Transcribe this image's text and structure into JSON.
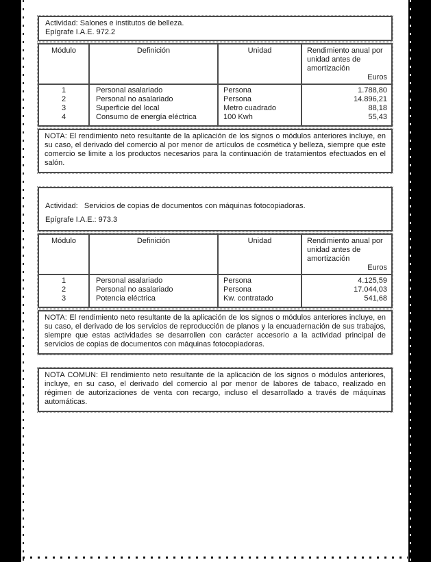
{
  "page": {
    "boxes": [
      {
        "actividad_line": "Actividad: Salones e institutos de belleza.",
        "epigrafe_line": "Epígrafe I.A.E. 972.2",
        "headers": {
          "modulo": "Módulo",
          "definicion": "Definición",
          "unidad": "Unidad",
          "rendimiento": "Rendimiento anual por unidad antes de amortización",
          "euros_label": "Euros"
        },
        "rows": [
          {
            "modulo": "1",
            "definicion": "Personal asalariado",
            "unidad": "Persona",
            "importe": "1.788,80"
          },
          {
            "modulo": "2",
            "definicion": "Personal no asalariado",
            "unidad": "Persona",
            "importe": "14.896,21"
          },
          {
            "modulo": "3",
            "definicion": "Superficie del local",
            "unidad": "Metro cuadrado",
            "importe": "88,18"
          },
          {
            "modulo": "4",
            "definicion": "Consumo de energía eléctrica",
            "unidad": "100 Kwh",
            "importe": "55,43"
          }
        ],
        "nota": "NOTA: El rendimiento neto resultante de la aplicación de los signos o módulos anteriores incluye, en su caso, el derivado del comercio al por menor de artículos de cosmética y belleza, siempre que este comercio se limite a los productos necesarios para la continuación de tratamientos efectuados en el salón."
      },
      {
        "actividad_line": "Actividad:   Servicios de copias de documentos con máquinas fotocopiadoras.",
        "epigrafe_line": "Epígrafe I.A.E.: 973.3",
        "headers": {
          "modulo": "Módulo",
          "definicion": "Definición",
          "unidad": "Unidad",
          "rendimiento": "Rendimiento anual por unidad antes de amortización",
          "euros_label": "Euros"
        },
        "rows": [
          {
            "modulo": "1",
            "definicion": "Personal asalariado",
            "unidad": "Persona",
            "importe": "4.125,59"
          },
          {
            "modulo": "2",
            "definicion": "Personal no asalariado",
            "unidad": "Persona",
            "importe": "17.044,03"
          },
          {
            "modulo": "3",
            "definicion": "Potencia eléctrica",
            "unidad": "Kw. contratado",
            "importe": "541,68"
          }
        ],
        "nota": "NOTA: El rendimiento neto resultante de la aplicación de los signos o módulos anteriores incluye, en su caso, el derivado de los servicios de reproducción de planos y la encuadernación de sus trabajos, siempre que estas actividades se desarrollen con carácter accesorio a la actividad principal de servicios de copias de documentos con máquinas fotocopiadoras."
      }
    ],
    "nota_comun": "NOTA COMUN: El rendimiento neto resultante de la aplicación de los signos o módulos anteriores, incluye, en su caso, el derivado del comercio al por menor de labores de tabaco, realizado en régimen de autorizaciones de venta con recargo, incluso el desarrollado a través de máquinas automáticas."
  },
  "colors": {
    "text": "#1a1a1a",
    "border_dark": "#4c4c4c",
    "border_dotted": "#9f9f9f",
    "scan_bar": "#000000"
  }
}
